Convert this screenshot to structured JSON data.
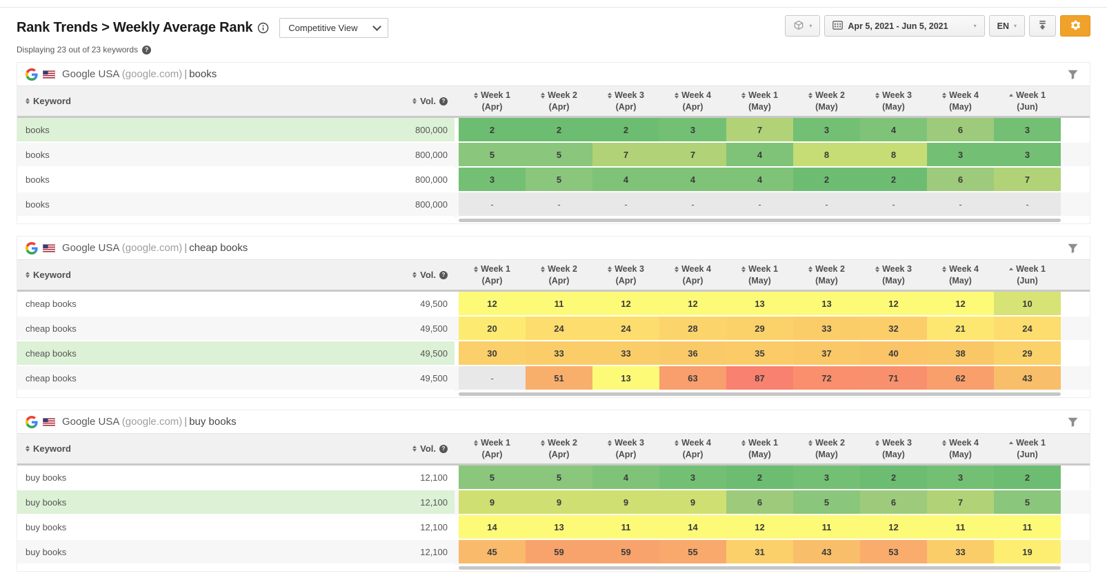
{
  "page": {
    "title": "Rank Trends > Weekly Average Rank",
    "view_dropdown": "Competitive View",
    "displaying": "Displaying 23 out of 23 keywords",
    "toolbar": {
      "date_range": "Apr 5, 2021 - Jun 5, 2021",
      "language": "EN"
    },
    "accent_color": "#f0a22a"
  },
  "columns": {
    "keyword_label": "Keyword",
    "vol_label": "Vol.",
    "weeks": [
      {
        "label": "Week 1",
        "month": "(Apr)",
        "sort": "both"
      },
      {
        "label": "Week 2",
        "month": "(Apr)",
        "sort": "both"
      },
      {
        "label": "Week 3",
        "month": "(Apr)",
        "sort": "both"
      },
      {
        "label": "Week 4",
        "month": "(Apr)",
        "sort": "both"
      },
      {
        "label": "Week 1",
        "month": "(May)",
        "sort": "both"
      },
      {
        "label": "Week 2",
        "month": "(May)",
        "sort": "both"
      },
      {
        "label": "Week 3",
        "month": "(May)",
        "sort": "both"
      },
      {
        "label": "Week 4",
        "month": "(May)",
        "sort": "both"
      },
      {
        "label": "Week 1",
        "month": "(Jun)",
        "sort": "asc"
      }
    ]
  },
  "heat_scale": [
    [
      1,
      "#62b768"
    ],
    [
      2,
      "#6cbd71"
    ],
    [
      3,
      "#73c074"
    ],
    [
      4,
      "#7fc378"
    ],
    [
      5,
      "#8ac67c"
    ],
    [
      6,
      "#9dcb7b"
    ],
    [
      7,
      "#b1d277"
    ],
    [
      8,
      "#c6dc74"
    ],
    [
      9,
      "#cfdf72"
    ],
    [
      10,
      "#d8e375"
    ],
    [
      11,
      "#fdfa78"
    ],
    [
      14,
      "#fdfa78"
    ],
    [
      20,
      "#fdeb71"
    ],
    [
      25,
      "#fcd96c"
    ],
    [
      30,
      "#fbd06a"
    ],
    [
      35,
      "#fbcb68"
    ],
    [
      40,
      "#fac467"
    ],
    [
      45,
      "#f9ba6b"
    ],
    [
      50,
      "#f9b16c"
    ],
    [
      55,
      "#f9a96c"
    ],
    [
      60,
      "#f9a26c"
    ],
    [
      65,
      "#f99b6d"
    ],
    [
      70,
      "#f9916d"
    ],
    [
      75,
      "#f98b6e"
    ],
    [
      85,
      "#f9826f"
    ],
    [
      100,
      "#f87a72"
    ]
  ],
  "empty_cell": {
    "text": "-",
    "bg": "#e8e8e8"
  },
  "highlight_color": "#dcf1d6",
  "icons": {
    "package": "cube-box",
    "calendar": "calendar-grid",
    "download": "down-arrow-with-lines",
    "settings": "gear",
    "filter": "funnel",
    "info": "circled-i",
    "help": "circled-question-mark",
    "sort": "up-down-triangles",
    "logo": "google-g",
    "flag": "us-flag"
  },
  "tables": [
    {
      "engine": "Google USA",
      "domain": "(google.com)",
      "label": "books",
      "rows": [
        {
          "keyword": "books",
          "vol": "800,000",
          "highlight": true,
          "values": [
            2,
            2,
            2,
            3,
            7,
            3,
            4,
            6,
            3
          ]
        },
        {
          "keyword": "books",
          "vol": "800,000",
          "highlight": false,
          "values": [
            5,
            5,
            7,
            7,
            4,
            8,
            8,
            3,
            3
          ]
        },
        {
          "keyword": "books",
          "vol": "800,000",
          "highlight": false,
          "values": [
            3,
            5,
            4,
            4,
            4,
            2,
            2,
            6,
            7
          ]
        },
        {
          "keyword": "books",
          "vol": "800,000",
          "highlight": false,
          "values": [
            "-",
            "-",
            "-",
            "-",
            "-",
            "-",
            "-",
            "-",
            "-"
          ]
        }
      ]
    },
    {
      "engine": "Google USA",
      "domain": "(google.com)",
      "label": "cheap books",
      "rows": [
        {
          "keyword": "cheap books",
          "vol": "49,500",
          "highlight": false,
          "values": [
            12,
            11,
            12,
            12,
            13,
            13,
            12,
            12,
            10
          ]
        },
        {
          "keyword": "cheap books",
          "vol": "49,500",
          "highlight": false,
          "values": [
            20,
            24,
            24,
            28,
            29,
            33,
            32,
            21,
            24
          ]
        },
        {
          "keyword": "cheap books",
          "vol": "49,500",
          "highlight": true,
          "values": [
            30,
            33,
            33,
            36,
            35,
            37,
            40,
            38,
            29
          ]
        },
        {
          "keyword": "cheap books",
          "vol": "49,500",
          "highlight": false,
          "values": [
            "-",
            51,
            13,
            63,
            87,
            72,
            71,
            62,
            43
          ]
        }
      ]
    },
    {
      "engine": "Google USA",
      "domain": "(google.com)",
      "label": "buy books",
      "rows": [
        {
          "keyword": "buy books",
          "vol": "12,100",
          "highlight": false,
          "values": [
            5,
            5,
            4,
            3,
            2,
            3,
            2,
            3,
            2
          ]
        },
        {
          "keyword": "buy books",
          "vol": "12,100",
          "highlight": true,
          "values": [
            9,
            9,
            9,
            9,
            6,
            5,
            6,
            7,
            5
          ]
        },
        {
          "keyword": "buy books",
          "vol": "12,100",
          "highlight": false,
          "values": [
            14,
            13,
            11,
            14,
            12,
            11,
            12,
            11,
            11
          ]
        },
        {
          "keyword": "buy books",
          "vol": "12,100",
          "highlight": false,
          "values": [
            45,
            59,
            59,
            55,
            31,
            43,
            53,
            33,
            19
          ]
        }
      ]
    }
  ]
}
